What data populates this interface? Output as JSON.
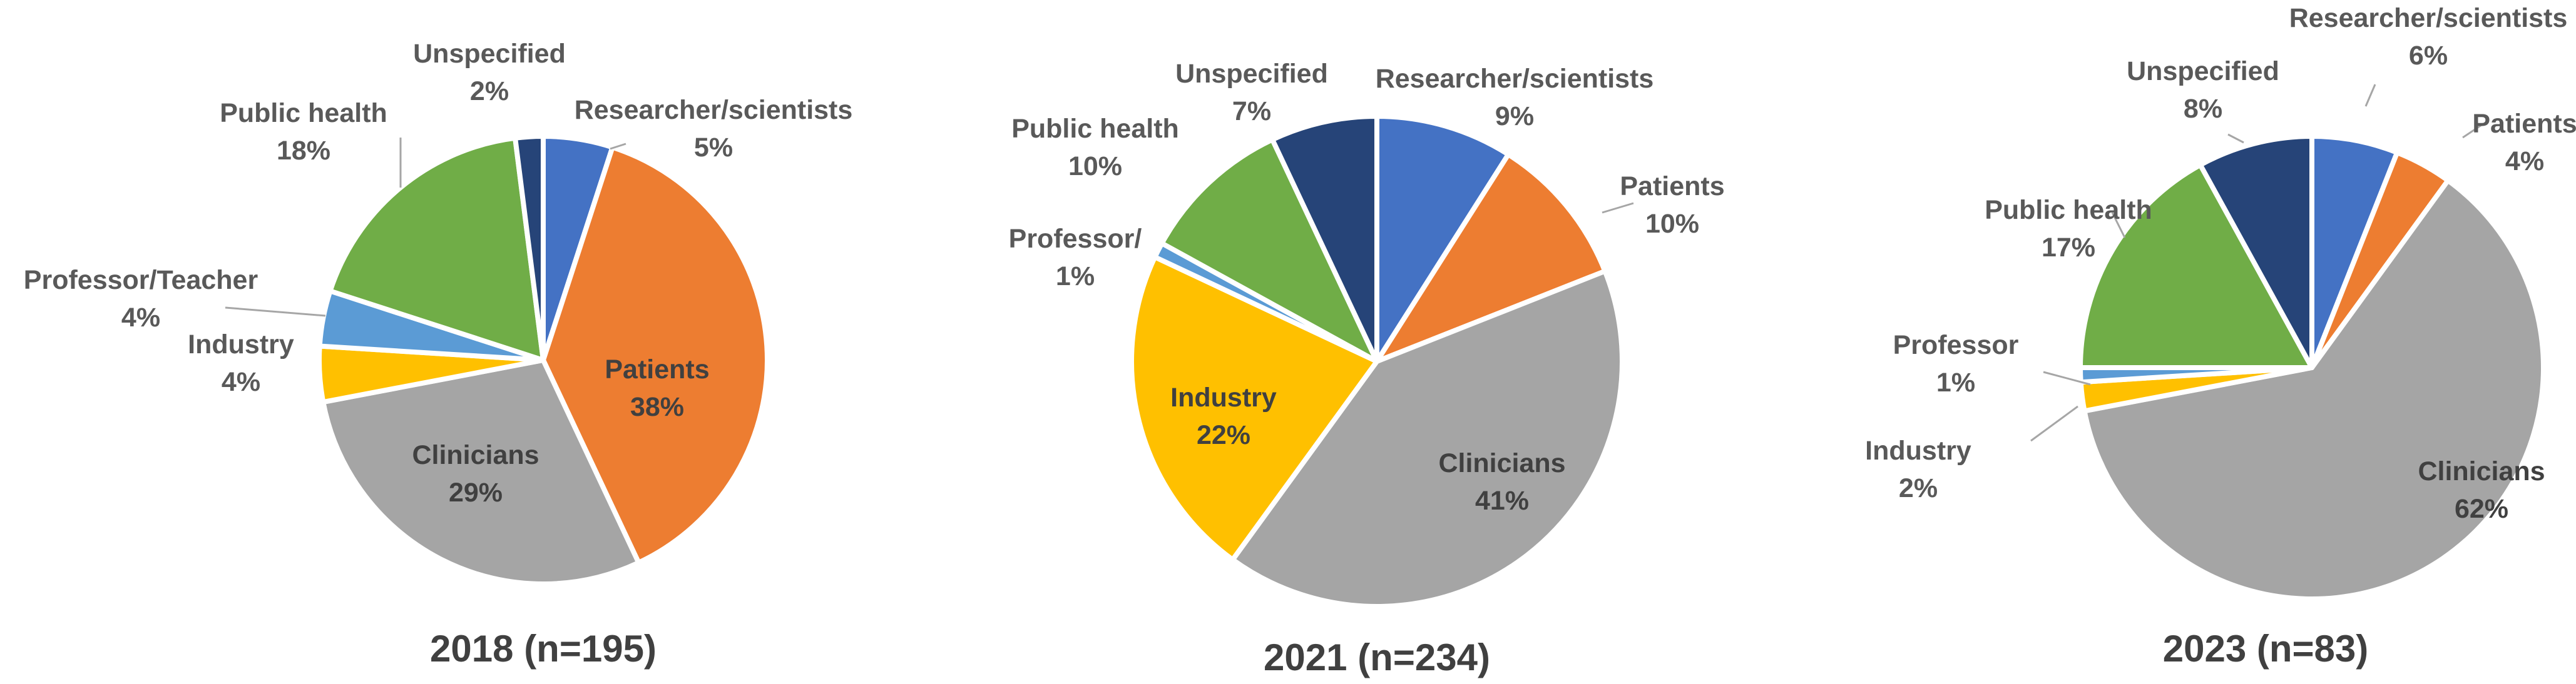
{
  "colors": {
    "Researcher/scientists": "#4472C4",
    "Patients": "#ED7D31",
    "Clinicians": "#A5A5A5",
    "Industry": "#FFC000",
    "Professor": "#5B9BD5",
    "Public health": "#70AD47",
    "Unspecified": "#264478"
  },
  "chart_data": [
    {
      "type": "pie",
      "title": "2018 (n=195)",
      "slices": [
        {
          "key": "Researcher/scientists",
          "lines": [
            "Researcher/scientists",
            "5%"
          ],
          "value": 5
        },
        {
          "key": "Patients",
          "lines": [
            "Patients",
            "38%"
          ],
          "value": 38
        },
        {
          "key": "Clinicians",
          "lines": [
            "Clinicians",
            "29%"
          ],
          "value": 29
        },
        {
          "key": "Industry",
          "lines": [
            "Industry",
            "4%"
          ],
          "value": 4
        },
        {
          "key": "Professor",
          "lines": [
            "Professor/Teacher",
            "4%"
          ],
          "value": 4
        },
        {
          "key": "Public health",
          "lines": [
            "Public health",
            "18%"
          ],
          "value": 18
        },
        {
          "key": "Unspecified",
          "lines": [
            "Unspecified",
            "2%"
          ],
          "value": 2
        }
      ]
    },
    {
      "type": "pie",
      "title": "2021 (n=234)",
      "slices": [
        {
          "key": "Researcher/scientists",
          "lines": [
            "Researcher/scientists",
            "9%"
          ],
          "value": 9
        },
        {
          "key": "Patients",
          "lines": [
            "Patients",
            "10%"
          ],
          "value": 10
        },
        {
          "key": "Clinicians",
          "lines": [
            "Clinicians",
            "41%"
          ],
          "value": 41
        },
        {
          "key": "Industry",
          "lines": [
            "Industry",
            "22%"
          ],
          "value": 22
        },
        {
          "key": "Professor",
          "lines": [
            "Professor/",
            "1%"
          ],
          "value": 1
        },
        {
          "key": "Public health",
          "lines": [
            "Public health",
            "10%"
          ],
          "value": 10
        },
        {
          "key": "Unspecified",
          "lines": [
            "Unspecified",
            "7%"
          ],
          "value": 7
        }
      ]
    },
    {
      "type": "pie",
      "title": "2023 (n=83)",
      "slices": [
        {
          "key": "Researcher/scientists",
          "lines": [
            "Researcher/scientists",
            "6%"
          ],
          "value": 6
        },
        {
          "key": "Patients",
          "lines": [
            "Patients",
            "4%"
          ],
          "value": 4
        },
        {
          "key": "Clinicians",
          "lines": [
            "Clinicians",
            "62%"
          ],
          "value": 62
        },
        {
          "key": "Industry",
          "lines": [
            "Industry",
            "2%"
          ],
          "value": 2
        },
        {
          "key": "Professor",
          "lines": [
            "Professor",
            "1%"
          ],
          "value": 1
        },
        {
          "key": "Public health",
          "lines": [
            "Public health",
            "17%"
          ],
          "value": 17
        },
        {
          "key": "Unspecified",
          "lines": [
            "Unspecified",
            "8%"
          ],
          "value": 8
        }
      ]
    }
  ]
}
